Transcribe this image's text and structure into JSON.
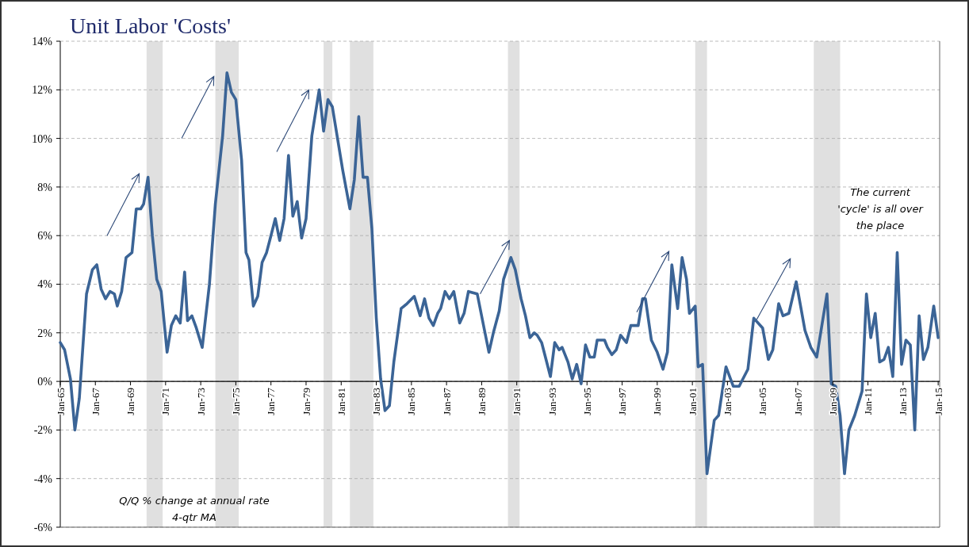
{
  "chart_data": {
    "type": "line",
    "title": "Unit Labor 'Costs'",
    "x": [
      "1965-01",
      "1965-04",
      "1965-08",
      "1965-11",
      "1966-02",
      "1966-07",
      "1966-11",
      "1967-02",
      "1967-05",
      "1967-08",
      "1967-11",
      "1968-02",
      "1968-04",
      "1968-07",
      "1968-10",
      "1969-02",
      "1969-05",
      "1969-08",
      "1969-10",
      "1970-01",
      "1970-04",
      "1970-07",
      "1970-10",
      "1971-02",
      "1971-05",
      "1971-08",
      "1971-11",
      "1972-02",
      "1972-04",
      "1972-07",
      "1972-10",
      "1973-02",
      "1973-07",
      "1973-11",
      "1974-04",
      "1974-07",
      "1974-10",
      "1975-01",
      "1975-05",
      "1975-08",
      "1975-10",
      "1976-01",
      "1976-04",
      "1976-07",
      "1976-10",
      "1977-01",
      "1977-04",
      "1977-07",
      "1977-10",
      "1978-01",
      "1978-04",
      "1978-07",
      "1978-10",
      "1979-01",
      "1979-05",
      "1979-10",
      "1980-01",
      "1980-04",
      "1980-07",
      "1981-02",
      "1981-07",
      "1981-10",
      "1982-01",
      "1982-04",
      "1982-07",
      "1982-10",
      "1983-01",
      "1983-04",
      "1983-07",
      "1983-10",
      "1984-01",
      "1984-06",
      "1984-10",
      "1985-03",
      "1985-07",
      "1985-10",
      "1986-01",
      "1986-04",
      "1986-07",
      "1986-09",
      "1986-12",
      "1987-03",
      "1987-06",
      "1987-10",
      "1988-01",
      "1988-04",
      "1988-10",
      "1989-03",
      "1989-06",
      "1989-09",
      "1990-01",
      "1990-04",
      "1990-09",
      "1990-12",
      "1991-04",
      "1991-07",
      "1991-10",
      "1992-01",
      "1992-03",
      "1992-06",
      "1992-09",
      "1992-12",
      "1993-03",
      "1993-06",
      "1993-08",
      "1993-12",
      "1994-03",
      "1994-06",
      "1994-09",
      "1994-12",
      "1995-03",
      "1995-06",
      "1995-08",
      "1996-01",
      "1996-03",
      "1996-06",
      "1996-09",
      "1996-12",
      "1997-04",
      "1997-07",
      "1997-12",
      "1998-03",
      "1998-05",
      "1998-09",
      "1999-01",
      "1999-05",
      "1999-08",
      "1999-11",
      "2000-03",
      "2000-06",
      "2000-09",
      "2000-11",
      "2001-03",
      "2001-05",
      "2001-08",
      "2001-11",
      "2002-04",
      "2002-07",
      "2002-12",
      "2003-05",
      "2003-09",
      "2004-03",
      "2004-07",
      "2005-01",
      "2005-05",
      "2005-08",
      "2005-12",
      "2006-03",
      "2006-07",
      "2006-12",
      "2007-06",
      "2007-10",
      "2008-02",
      "2008-09",
      "2008-12",
      "2009-03",
      "2009-06",
      "2009-09",
      "2009-12",
      "2010-04",
      "2010-09",
      "2010-12",
      "2011-03",
      "2011-06",
      "2011-09",
      "2011-12",
      "2012-03",
      "2012-06",
      "2012-09",
      "2012-12",
      "2013-03",
      "2013-06",
      "2013-09",
      "2013-12",
      "2014-03",
      "2014-06",
      "2014-10",
      "2015-01"
    ],
    "series": [
      {
        "color": "#3b6496",
        "values": [
          1.6,
          1.3,
          0.1,
          -2.0,
          -0.7,
          3.6,
          4.6,
          4.8,
          3.8,
          3.4,
          3.7,
          3.6,
          3.1,
          3.7,
          5.1,
          5.3,
          7.1,
          7.1,
          7.3,
          8.4,
          6.0,
          4.2,
          3.7,
          1.2,
          2.3,
          2.7,
          2.4,
          4.5,
          2.5,
          2.7,
          2.2,
          1.4,
          4.0,
          7.3,
          10.1,
          12.7,
          11.9,
          11.6,
          9.1,
          5.3,
          5.0,
          3.1,
          3.5,
          4.9,
          5.3,
          6.0,
          6.7,
          5.8,
          6.7,
          9.3,
          6.8,
          7.4,
          5.9,
          6.7,
          10.1,
          12.0,
          10.3,
          11.6,
          11.3,
          8.7,
          7.1,
          8.3,
          10.9,
          8.4,
          8.4,
          6.3,
          2.6,
          0.1,
          -1.2,
          -1.0,
          0.8,
          3.0,
          3.2,
          3.5,
          2.7,
          3.4,
          2.6,
          2.3,
          2.8,
          3.0,
          3.7,
          3.4,
          3.7,
          2.4,
          2.8,
          3.7,
          3.6,
          2.1,
          1.2,
          2.0,
          2.9,
          4.2,
          5.1,
          4.6,
          3.4,
          2.7,
          1.8,
          2.0,
          1.9,
          1.6,
          0.9,
          0.2,
          1.6,
          1.3,
          1.4,
          0.8,
          0.1,
          0.7,
          -0.1,
          1.5,
          1.0,
          1.0,
          1.7,
          1.7,
          1.4,
          1.1,
          1.3,
          1.9,
          1.6,
          2.3,
          2.3,
          3.4,
          3.4,
          1.7,
          1.2,
          0.5,
          1.2,
          4.8,
          3.0,
          5.1,
          4.2,
          2.8,
          3.1,
          0.6,
          0.7,
          -3.8,
          -1.6,
          -1.4,
          0.6,
          -0.2,
          -0.2,
          0.5,
          2.6,
          2.2,
          0.9,
          1.3,
          3.2,
          2.7,
          2.8,
          4.1,
          2.1,
          1.4,
          1.0,
          3.6,
          -0.1,
          -0.2,
          -1.4,
          -3.8,
          -2.0,
          -1.4,
          -0.4,
          3.6,
          1.8,
          2.8,
          0.8,
          0.9,
          1.4,
          0.2,
          5.3,
          0.7,
          1.7,
          1.5,
          -2.0,
          2.7,
          0.9,
          1.4,
          3.1,
          1.8
        ]
      }
    ],
    "xlim": [
      "1965-01",
      "2015-02"
    ],
    "xticks": [
      {
        "value": "1965-01",
        "label": "Jan-65"
      },
      {
        "value": "1967-01",
        "label": "Jan-67"
      },
      {
        "value": "1969-01",
        "label": "Jan-69"
      },
      {
        "value": "1971-01",
        "label": "Jan-71"
      },
      {
        "value": "1973-01",
        "label": "Jan-73"
      },
      {
        "value": "1975-01",
        "label": "Jan-75"
      },
      {
        "value": "1977-01",
        "label": "Jan-77"
      },
      {
        "value": "1979-01",
        "label": "Jan-79"
      },
      {
        "value": "1981-01",
        "label": "Jan-81"
      },
      {
        "value": "1983-01",
        "label": "Jan-83"
      },
      {
        "value": "1985-01",
        "label": "Jan-85"
      },
      {
        "value": "1987-01",
        "label": "Jan-87"
      },
      {
        "value": "1989-01",
        "label": "Jan-89"
      },
      {
        "value": "1991-01",
        "label": "Jan-91"
      },
      {
        "value": "1993-01",
        "label": "Jan-93"
      },
      {
        "value": "1995-01",
        "label": "Jan-95"
      },
      {
        "value": "1997-01",
        "label": "Jan-97"
      },
      {
        "value": "1999-01",
        "label": "Jan-99"
      },
      {
        "value": "2001-01",
        "label": "Jan-01"
      },
      {
        "value": "2003-01",
        "label": "Jan-03"
      },
      {
        "value": "2005-01",
        "label": "Jan-05"
      },
      {
        "value": "2007-01",
        "label": "Jan-07"
      },
      {
        "value": "2009-01",
        "label": "Jan-09"
      },
      {
        "value": "2011-01",
        "label": "Jan-11"
      },
      {
        "value": "2013-01",
        "label": "Jan-13"
      },
      {
        "value": "2015-01",
        "label": "Jan-15"
      }
    ],
    "ylim": [
      -6,
      14
    ],
    "yticks": [
      {
        "value": -6,
        "label": "-6%"
      },
      {
        "value": -4,
        "label": "-4%"
      },
      {
        "value": -2,
        "label": "-2%"
      },
      {
        "value": 0,
        "label": "0%"
      },
      {
        "value": 2,
        "label": "2%"
      },
      {
        "value": 4,
        "label": "4%"
      },
      {
        "value": 6,
        "label": "6%"
      },
      {
        "value": 8,
        "label": "8%"
      },
      {
        "value": 10,
        "label": "10%"
      },
      {
        "value": 12,
        "label": "12%"
      },
      {
        "value": 14,
        "label": "14%"
      }
    ],
    "grid": "y",
    "line_style": "solid",
    "bands": [
      {
        "axis": "x",
        "from": "1969-12",
        "to": "1970-11",
        "color": "#e0e0e0"
      },
      {
        "axis": "x",
        "from": "1973-11",
        "to": "1975-03",
        "color": "#e0e0e0"
      },
      {
        "axis": "x",
        "from": "1980-01",
        "to": "1980-07",
        "color": "#e0e0e0"
      },
      {
        "axis": "x",
        "from": "1981-07",
        "to": "1982-11",
        "color": "#e0e0e0"
      },
      {
        "axis": "x",
        "from": "1990-07",
        "to": "1991-03",
        "color": "#e0e0e0"
      },
      {
        "axis": "x",
        "from": "2001-03",
        "to": "2001-11",
        "color": "#e0e0e0"
      },
      {
        "axis": "x",
        "from": "2007-12",
        "to": "2009-06",
        "color": "#e0e0e0"
      }
    ],
    "annotations": [
      "The current\n'cycle' is all over\nthe place",
      "Q/Q % change at annual rate\n4-qtr MA"
    ]
  }
}
